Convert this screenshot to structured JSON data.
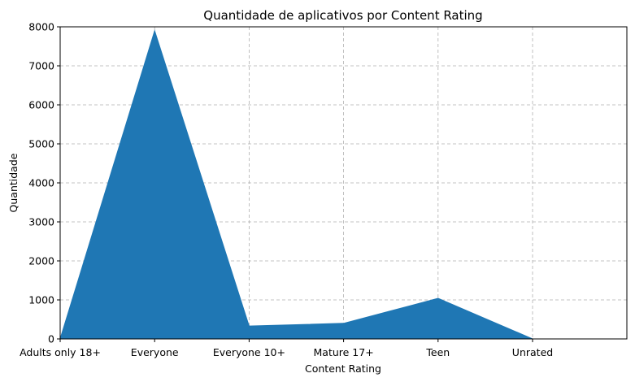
{
  "chart_data": {
    "type": "area",
    "title": "Quantidade de aplicativos por Content Rating",
    "xlabel": "Content Rating",
    "ylabel": "Quantidade",
    "categories": [
      "Adults only 18+",
      "Everyone",
      "Everyone 10+",
      "Mature 17+",
      "Teen",
      "Unrated"
    ],
    "values": [
      3,
      7900,
      330,
      400,
      1040,
      2
    ],
    "ylim": [
      0,
      8000
    ],
    "yticks": [
      "0",
      "1000",
      "2000",
      "3000",
      "4000",
      "5000",
      "6000",
      "7000",
      "8000"
    ],
    "grid": true,
    "color": "#1f77b4"
  }
}
